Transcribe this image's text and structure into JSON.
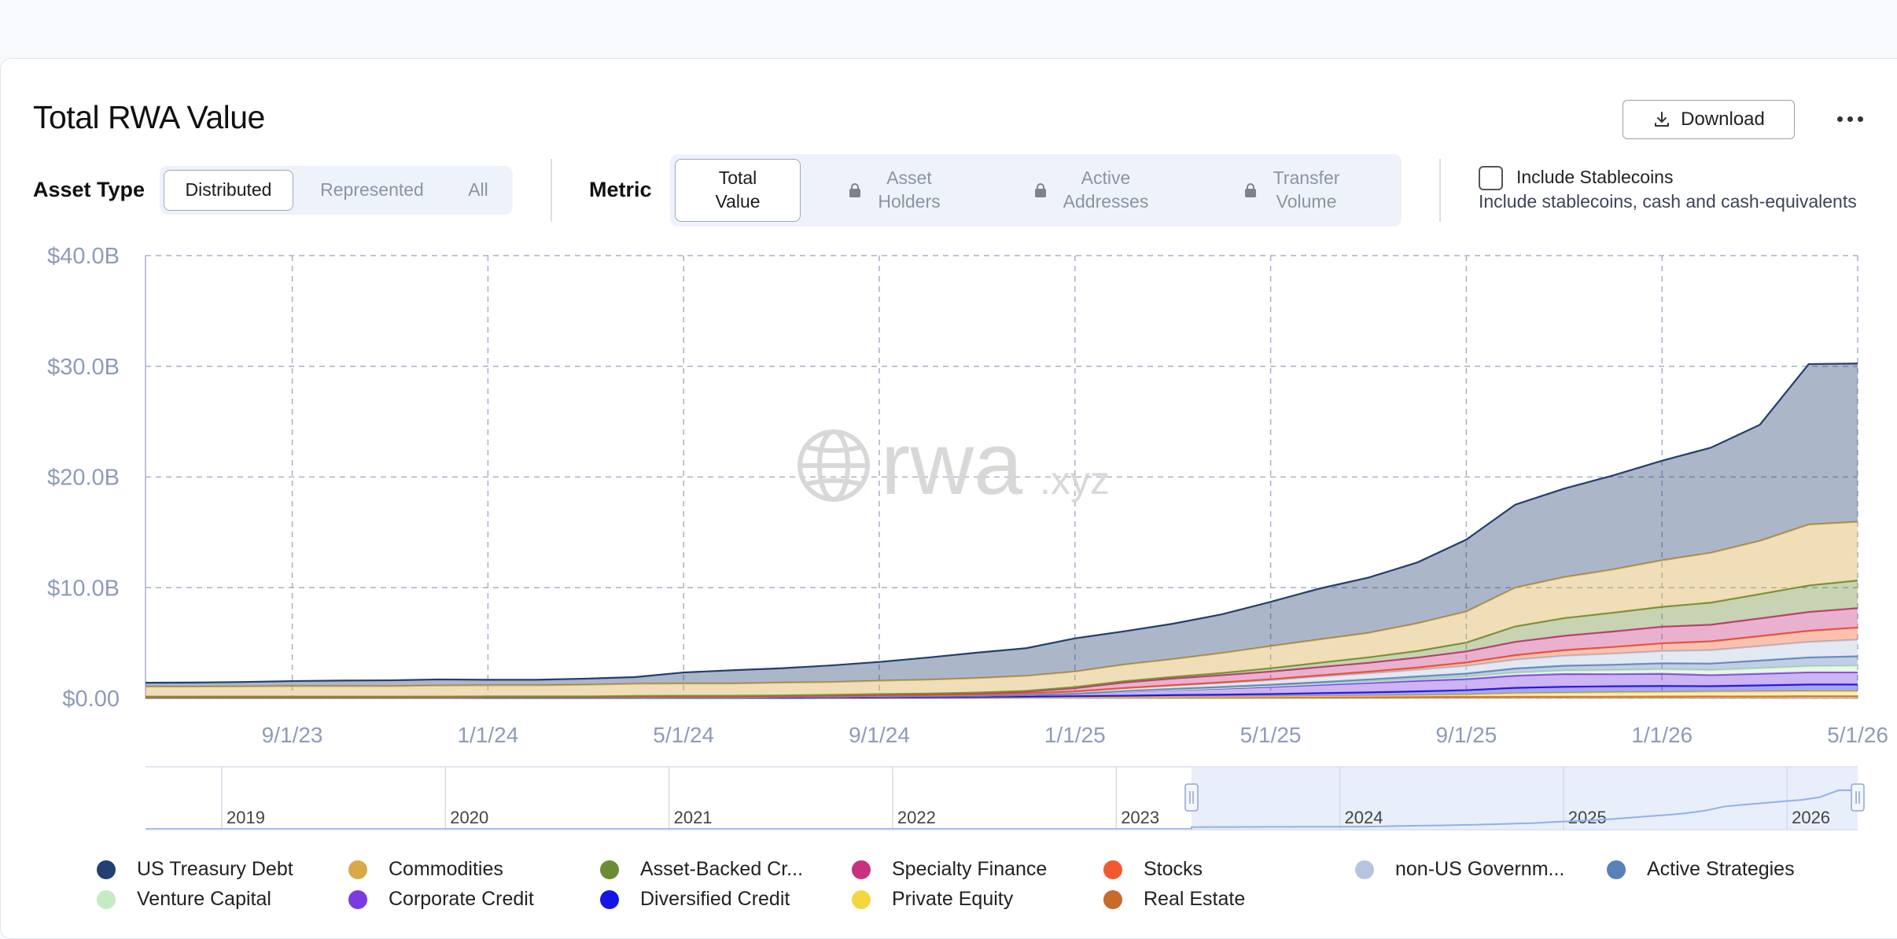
{
  "header": {
    "title": "Total RWA Value",
    "download_label": "Download"
  },
  "filters": {
    "asset_type_label": "Asset Type",
    "asset_type_options": [
      "Distributed",
      "Represented",
      "All"
    ],
    "asset_type_selected": "Distributed",
    "metric_label": "Metric",
    "metric_options": [
      {
        "line1": "Total",
        "line2": "Value",
        "locked": false
      },
      {
        "line1": "Asset",
        "line2": "Holders",
        "locked": true
      },
      {
        "line1": "Active",
        "line2": "Addresses",
        "locked": true
      },
      {
        "line1": "Transfer",
        "line2": "Volume",
        "locked": true
      }
    ],
    "metric_selected": "Total Value",
    "stablecoins_label": "Include Stablecoins",
    "stablecoins_desc": "Include stablecoins, cash and cash-equivalents",
    "stablecoins_checked": false
  },
  "watermark": {
    "text": "rwa",
    "suffix": ".xyz"
  },
  "chart_data": {
    "type": "area",
    "stacked": true,
    "title": "",
    "xlabel": "",
    "ylabel": "",
    "x": [
      "6/1/23",
      "7/1/23",
      "8/1/23",
      "9/1/23",
      "10/1/23",
      "11/1/23",
      "12/1/23",
      "1/1/24",
      "2/1/24",
      "3/1/24",
      "4/1/24",
      "5/1/24",
      "6/1/24",
      "7/1/24",
      "8/1/24",
      "9/1/24",
      "10/1/24",
      "11/1/24",
      "12/1/24",
      "1/1/25",
      "2/1/25",
      "3/1/25",
      "4/1/25",
      "5/1/25",
      "6/1/25",
      "7/1/25",
      "8/1/25",
      "9/1/25",
      "10/1/25",
      "11/1/25",
      "12/1/25",
      "1/1/26",
      "2/1/26",
      "3/1/26",
      "4/1/26",
      "5/1/26"
    ],
    "x_ticks": [
      "9/1/23",
      "1/1/24",
      "5/1/24",
      "9/1/24",
      "1/1/25",
      "5/1/25",
      "9/1/25",
      "1/1/26",
      "5/1/26"
    ],
    "y_ticks": [
      "$0.00",
      "$10.0B",
      "$20.0B",
      "$30.0B",
      "$40.0B"
    ],
    "ylim": [
      0,
      40
    ],
    "y_unit": "$B",
    "grid": true,
    "series": [
      {
        "name": "Real Estate",
        "color": "#c76a2c",
        "values": [
          0.05,
          0.05,
          0.05,
          0.05,
          0.05,
          0.05,
          0.05,
          0.05,
          0.05,
          0.05,
          0.05,
          0.05,
          0.05,
          0.05,
          0.05,
          0.06,
          0.06,
          0.06,
          0.07,
          0.08,
          0.09,
          0.1,
          0.1,
          0.11,
          0.12,
          0.12,
          0.13,
          0.14,
          0.15,
          0.15,
          0.16,
          0.17,
          0.18,
          0.18,
          0.2,
          0.2
        ]
      },
      {
        "name": "Private Equity",
        "color": "#f6d63f",
        "values": [
          0,
          0,
          0,
          0,
          0,
          0,
          0,
          0,
          0,
          0,
          0,
          0,
          0,
          0,
          0,
          0,
          0,
          0,
          0,
          0.02,
          0.03,
          0.05,
          0.06,
          0.08,
          0.1,
          0.12,
          0.15,
          0.2,
          0.3,
          0.35,
          0.38,
          0.4,
          0.42,
          0.44,
          0.45,
          0.45
        ]
      },
      {
        "name": "Diversified Credit",
        "color": "#1414e6",
        "values": [
          0,
          0,
          0,
          0,
          0,
          0,
          0,
          0,
          0,
          0,
          0,
          0,
          0,
          0,
          0.01,
          0.02,
          0.03,
          0.05,
          0.08,
          0.1,
          0.12,
          0.15,
          0.18,
          0.2,
          0.25,
          0.3,
          0.35,
          0.4,
          0.5,
          0.55,
          0.55,
          0.55,
          0.5,
          0.55,
          0.6,
          0.6
        ]
      },
      {
        "name": "Corporate Credit",
        "color": "#7b3be0",
        "values": [
          0.02,
          0.02,
          0.02,
          0.02,
          0.02,
          0.02,
          0.02,
          0.03,
          0.03,
          0.03,
          0.04,
          0.05,
          0.05,
          0.06,
          0.07,
          0.08,
          0.1,
          0.12,
          0.15,
          0.2,
          0.35,
          0.45,
          0.55,
          0.65,
          0.75,
          0.85,
          0.95,
          1.0,
          1.1,
          1.15,
          1.1,
          1.1,
          1.0,
          1.05,
          1.1,
          1.1
        ]
      },
      {
        "name": "Venture Capital",
        "color": "#c5ebc2",
        "values": [
          0,
          0,
          0,
          0,
          0,
          0,
          0,
          0,
          0,
          0,
          0,
          0,
          0,
          0,
          0,
          0,
          0,
          0,
          0,
          0,
          0.02,
          0.03,
          0.05,
          0.08,
          0.1,
          0.12,
          0.15,
          0.2,
          0.25,
          0.3,
          0.35,
          0.4,
          0.45,
          0.5,
          0.55,
          0.6
        ]
      },
      {
        "name": "Active Strategies",
        "color": "#5a80b8",
        "values": [
          0,
          0,
          0,
          0,
          0,
          0,
          0,
          0,
          0,
          0,
          0,
          0,
          0,
          0,
          0,
          0,
          0,
          0,
          0,
          0.02,
          0.05,
          0.08,
          0.1,
          0.12,
          0.15,
          0.2,
          0.25,
          0.3,
          0.4,
          0.45,
          0.5,
          0.55,
          0.6,
          0.7,
          0.8,
          0.85
        ]
      },
      {
        "name": "non-US Government Debt",
        "color": "#b6c5dd",
        "values": [
          0.02,
          0.02,
          0.02,
          0.02,
          0.02,
          0.02,
          0.02,
          0.03,
          0.03,
          0.03,
          0.04,
          0.05,
          0.05,
          0.06,
          0.07,
          0.08,
          0.1,
          0.12,
          0.15,
          0.2,
          0.25,
          0.3,
          0.35,
          0.4,
          0.5,
          0.55,
          0.6,
          0.7,
          0.8,
          0.9,
          1.0,
          1.1,
          1.2,
          1.3,
          1.4,
          1.5
        ]
      },
      {
        "name": "Stocks",
        "color": "#ef5b2e",
        "values": [
          0,
          0,
          0,
          0,
          0,
          0,
          0,
          0,
          0,
          0,
          0,
          0,
          0,
          0,
          0,
          0,
          0,
          0,
          0,
          0,
          0.02,
          0.03,
          0.05,
          0.08,
          0.1,
          0.15,
          0.2,
          0.3,
          0.4,
          0.5,
          0.6,
          0.7,
          0.8,
          0.9,
          1.0,
          1.1
        ]
      },
      {
        "name": "Specialty Finance",
        "color": "#c8317e",
        "values": [
          0.05,
          0.05,
          0.05,
          0.05,
          0.05,
          0.05,
          0.05,
          0.05,
          0.05,
          0.05,
          0.06,
          0.06,
          0.06,
          0.07,
          0.08,
          0.1,
          0.1,
          0.12,
          0.15,
          0.3,
          0.5,
          0.6,
          0.65,
          0.7,
          0.75,
          0.8,
          0.9,
          1.0,
          1.2,
          1.3,
          1.4,
          1.5,
          1.5,
          1.6,
          1.7,
          1.75
        ]
      },
      {
        "name": "Asset-Backed Credit",
        "color": "#6b8c34",
        "values": [
          0.02,
          0.02,
          0.02,
          0.02,
          0.02,
          0.02,
          0.02,
          0.02,
          0.02,
          0.02,
          0.03,
          0.03,
          0.03,
          0.03,
          0.04,
          0.05,
          0.05,
          0.06,
          0.08,
          0.1,
          0.12,
          0.15,
          0.2,
          0.3,
          0.4,
          0.5,
          0.6,
          0.8,
          1.4,
          1.6,
          1.7,
          1.8,
          2.0,
          2.2,
          2.4,
          2.5
        ]
      },
      {
        "name": "Commodities",
        "color": "#d7a947",
        "values": [
          0.9,
          0.9,
          0.92,
          0.95,
          0.95,
          0.95,
          1.0,
          1.0,
          1.0,
          1.05,
          1.1,
          1.1,
          1.1,
          1.15,
          1.15,
          1.2,
          1.25,
          1.3,
          1.35,
          1.4,
          1.5,
          1.6,
          1.8,
          2.0,
          2.1,
          2.2,
          2.5,
          2.8,
          3.5,
          3.7,
          3.9,
          4.2,
          4.5,
          4.8,
          5.5,
          5.3
        ]
      },
      {
        "name": "US Treasury Debt",
        "color": "#233e70",
        "values": [
          0.35,
          0.37,
          0.4,
          0.45,
          0.5,
          0.52,
          0.55,
          0.5,
          0.5,
          0.55,
          0.6,
          1.0,
          1.2,
          1.3,
          1.5,
          1.7,
          2.0,
          2.3,
          2.5,
          3.0,
          3.0,
          3.2,
          3.5,
          4.0,
          4.6,
          5.0,
          5.5,
          6.5,
          7.5,
          8.0,
          8.5,
          9.0,
          9.5,
          10.5,
          14.5,
          14.3
        ]
      }
    ],
    "navigator": {
      "years": [
        "2019",
        "2020",
        "2021",
        "2022",
        "2023",
        "2024",
        "2025",
        "2026"
      ]
    }
  },
  "legend": [
    {
      "label": "US Treasury Debt",
      "color": "#233e70"
    },
    {
      "label": "Commodities",
      "color": "#d7a947"
    },
    {
      "label": "Asset-Backed Cr...",
      "color": "#6b8c34"
    },
    {
      "label": "Specialty Finance",
      "color": "#c8317e"
    },
    {
      "label": "Stocks",
      "color": "#ef5b2e"
    },
    {
      "label": "non-US Governm...",
      "color": "#b6c5dd"
    },
    {
      "label": "Active Strategies",
      "color": "#5a80b8"
    },
    {
      "label": "Venture Capital",
      "color": "#c5ebc2"
    },
    {
      "label": "Corporate Credit",
      "color": "#7b3be0"
    },
    {
      "label": "Diversified Credit",
      "color": "#1414e6"
    },
    {
      "label": "Private Equity",
      "color": "#f6d63f"
    },
    {
      "label": "Real Estate",
      "color": "#c76a2c"
    }
  ]
}
